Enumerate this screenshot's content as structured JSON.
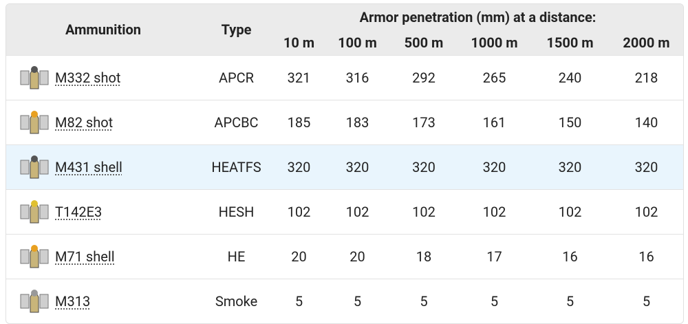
{
  "table": {
    "header": {
      "ammunition": "Ammunition",
      "type": "Type",
      "group": "Armor penetration (mm) at a distance:",
      "distances": [
        "10 m",
        "100 m",
        "500 m",
        "1000 m",
        "1500 m",
        "2000 m"
      ]
    },
    "rows": [
      {
        "name": "M332 shot",
        "type": "APCR",
        "values": [
          321,
          316,
          292,
          265,
          240,
          218
        ]
      },
      {
        "name": "M82 shot",
        "type": "APCBC",
        "values": [
          185,
          183,
          173,
          161,
          150,
          140
        ]
      },
      {
        "name": "M431 shell",
        "type": "HEATFS",
        "values": [
          320,
          320,
          320,
          320,
          320,
          320
        ]
      },
      {
        "name": "T142E3",
        "type": "HESH",
        "values": [
          102,
          102,
          102,
          102,
          102,
          102
        ]
      },
      {
        "name": "M71 shell",
        "type": "HE",
        "values": [
          20,
          20,
          18,
          17,
          16,
          16
        ]
      },
      {
        "name": "M313",
        "type": "Smoke",
        "values": [
          5,
          5,
          5,
          5,
          5,
          5
        ]
      }
    ]
  }
}
